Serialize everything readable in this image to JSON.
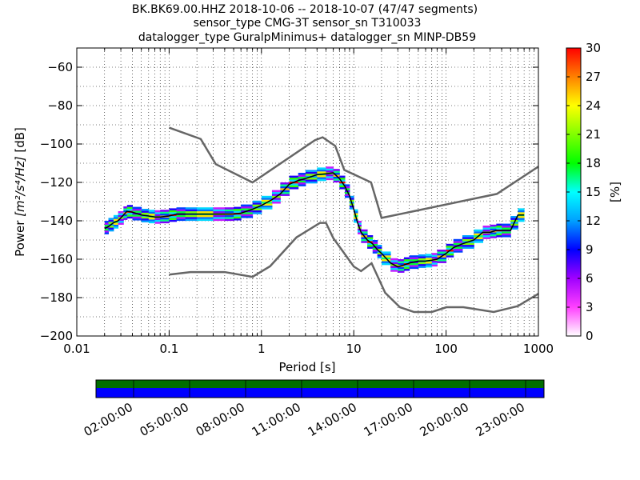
{
  "chart_data": {
    "type": "heatmap",
    "title_lines": [
      "BK.BK69.00.HHZ   2018-10-06 -- 2018-10-07  (47/47 segments)",
      "sensor_type CMG-3T sensor_sn T310033",
      "datalogger_type GuralpMinimus+ datalogger_sn MINP-DB59"
    ],
    "xlabel": "Period [s]",
    "ylabel_prefix": "Power ",
    "ylabel_math": "[m²/s⁴/Hz]",
    "ylabel_suffix": " [dB]",
    "x_scale": "log",
    "xlim": [
      0.01,
      1000
    ],
    "ylim": [
      -200,
      -50
    ],
    "x_ticks": [
      0.01,
      0.1,
      1,
      10,
      100,
      1000
    ],
    "x_tick_labels": [
      "0.01",
      "0.1",
      "1",
      "10",
      "100",
      "1000"
    ],
    "y_ticks": [
      -200,
      -180,
      -160,
      -140,
      -120,
      -100,
      -80,
      -60
    ],
    "y_tick_labels": [
      "−200",
      "−180",
      "−160",
      "−140",
      "−120",
      "−100",
      "−80",
      "−60"
    ],
    "grid": "dotted",
    "colorbar": {
      "label": "[%]",
      "range": [
        0,
        30
      ],
      "ticks": [
        0,
        3,
        6,
        9,
        12,
        15,
        18,
        21,
        24,
        27,
        30
      ],
      "colormap": [
        "#ffffff",
        "#ff40ff",
        "#a000ff",
        "#0000ff",
        "#00a0ff",
        "#00ffff",
        "#00ff00",
        "#80ff00",
        "#ffff00",
        "#ff8000",
        "#ff0000"
      ]
    },
    "noise_model_high": {
      "x": [
        0.1,
        0.22,
        0.32,
        0.8,
        3.8,
        4.6,
        6.3,
        7.9,
        15.4,
        20,
        354.8,
        10000
      ],
      "y": [
        -91.5,
        -97.4,
        -110.5,
        -120,
        -98,
        -96.5,
        -101,
        -113.5,
        -120,
        -138.5,
        -126,
        -80.1
      ]
    },
    "noise_model_low": {
      "x": [
        0.1,
        0.17,
        0.4,
        0.8,
        1.24,
        2.4,
        4.3,
        5,
        6,
        10,
        12,
        15.6,
        21.9,
        31.6,
        45,
        70,
        101,
        154,
        328,
        600,
        1000
      ],
      "y": [
        -168,
        -166.7,
        -166.7,
        -169.2,
        -163.7,
        -148.6,
        -141.1,
        -141.1,
        -149,
        -163.8,
        -166.2,
        -162.1,
        -177.5,
        -185,
        -187.5,
        -187.5,
        -185,
        -185,
        -187.5,
        -184.4,
        -178
      ]
    },
    "mode_line": {
      "x": [
        0.02,
        0.022,
        0.025,
        0.028,
        0.032,
        0.035,
        0.04,
        0.05,
        0.06,
        0.07,
        0.08,
        0.1,
        0.12,
        0.15,
        0.2,
        0.3,
        0.4,
        0.5,
        0.6,
        0.8,
        1,
        1.3,
        1.6,
        2,
        2.5,
        3,
        4,
        5,
        6,
        7,
        8,
        9,
        10,
        11,
        12,
        14,
        16,
        18,
        20,
        25,
        30,
        35,
        40,
        50,
        60,
        70,
        80,
        100,
        120,
        150,
        200,
        250,
        300,
        350,
        400,
        500,
        600,
        700
      ],
      "y": [
        -144,
        -143,
        -141,
        -140,
        -137,
        -135,
        -135.5,
        -137,
        -137.5,
        -138,
        -138,
        -137.5,
        -136.5,
        -136.5,
        -136.5,
        -136.5,
        -136.5,
        -136.5,
        -136,
        -134,
        -132,
        -129,
        -126,
        -121,
        -119,
        -118,
        -116,
        -115.5,
        -115,
        -118,
        -122,
        -127,
        -134,
        -141,
        -146,
        -150,
        -152,
        -155,
        -157,
        -162,
        -164,
        -163,
        -162,
        -161,
        -161,
        -160.5,
        -160,
        -157,
        -154,
        -152,
        -150,
        -146,
        -146,
        -145,
        -145,
        -145,
        -137,
        -137
      ]
    },
    "density_band_half_width_db": 3
  },
  "availability": {
    "time_labels": [
      "02:00:00",
      "05:00:00",
      "08:00:00",
      "11:00:00",
      "14:00:00",
      "17:00:00",
      "20:00:00",
      "23:00:00"
    ],
    "segments_present": 47,
    "segments_total": 47,
    "colors": {
      "top_bar": "#006e00",
      "bottom_bar": "#0000ff"
    }
  }
}
